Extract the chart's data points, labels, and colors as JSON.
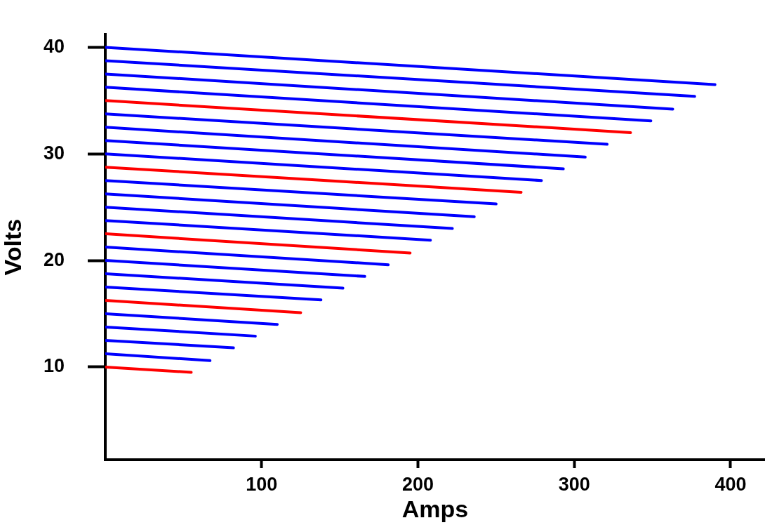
{
  "chart_data": {
    "type": "line",
    "xlabel": "Amps",
    "ylabel": "Volts",
    "xlim": [
      0,
      422
    ],
    "ylim": [
      1.3,
      41.2
    ],
    "xticks": [
      100,
      200,
      300,
      400
    ],
    "yticks": [
      10,
      20,
      30,
      40
    ],
    "grid": false,
    "legend": false,
    "marker": "none",
    "line_style": "solid",
    "series": [
      {
        "color": "#0000ff",
        "x": [
          0,
          390
        ],
        "values": [
          40,
          36.5
        ]
      },
      {
        "color": "#0000ff",
        "x": [
          0,
          377
        ],
        "values": [
          38.75,
          35.4
        ]
      },
      {
        "color": "#0000ff",
        "x": [
          0,
          363
        ],
        "values": [
          37.5,
          34.2
        ]
      },
      {
        "color": "#0000ff",
        "x": [
          0,
          349
        ],
        "values": [
          36.25,
          33.1
        ]
      },
      {
        "color": "#ff0000",
        "x": [
          0,
          336
        ],
        "values": [
          35,
          32.0
        ]
      },
      {
        "color": "#0000ff",
        "x": [
          0,
          321
        ],
        "values": [
          33.75,
          30.9
        ]
      },
      {
        "color": "#0000ff",
        "x": [
          0,
          307
        ],
        "values": [
          32.5,
          29.7
        ]
      },
      {
        "color": "#0000ff",
        "x": [
          0,
          293
        ],
        "values": [
          31.25,
          28.6
        ]
      },
      {
        "color": "#0000ff",
        "x": [
          0,
          279
        ],
        "values": [
          30,
          27.5
        ]
      },
      {
        "color": "#ff0000",
        "x": [
          0,
          266
        ],
        "values": [
          28.75,
          26.4
        ]
      },
      {
        "color": "#0000ff",
        "x": [
          0,
          250
        ],
        "values": [
          27.5,
          25.3
        ]
      },
      {
        "color": "#0000ff",
        "x": [
          0,
          236
        ],
        "values": [
          26.25,
          24.1
        ]
      },
      {
        "color": "#0000ff",
        "x": [
          0,
          222
        ],
        "values": [
          25,
          23.0
        ]
      },
      {
        "color": "#0000ff",
        "x": [
          0,
          208
        ],
        "values": [
          23.75,
          21.9
        ]
      },
      {
        "color": "#ff0000",
        "x": [
          0,
          195
        ],
        "values": [
          22.5,
          20.7
        ]
      },
      {
        "color": "#0000ff",
        "x": [
          0,
          181
        ],
        "values": [
          21.25,
          19.6
        ]
      },
      {
        "color": "#0000ff",
        "x": [
          0,
          166
        ],
        "values": [
          20,
          18.5
        ]
      },
      {
        "color": "#0000ff",
        "x": [
          0,
          152
        ],
        "values": [
          18.75,
          17.4
        ]
      },
      {
        "color": "#0000ff",
        "x": [
          0,
          138
        ],
        "values": [
          17.5,
          16.3
        ]
      },
      {
        "color": "#ff0000",
        "x": [
          0,
          125
        ],
        "values": [
          16.25,
          15.1
        ]
      },
      {
        "color": "#0000ff",
        "x": [
          0,
          110
        ],
        "values": [
          15,
          14.0
        ]
      },
      {
        "color": "#0000ff",
        "x": [
          0,
          96
        ],
        "values": [
          13.75,
          12.9
        ]
      },
      {
        "color": "#0000ff",
        "x": [
          0,
          82
        ],
        "values": [
          12.5,
          11.8
        ]
      },
      {
        "color": "#0000ff",
        "x": [
          0,
          67
        ],
        "values": [
          11.25,
          10.6
        ]
      },
      {
        "color": "#ff0000",
        "x": [
          0,
          55
        ],
        "values": [
          10,
          9.5
        ]
      }
    ]
  }
}
